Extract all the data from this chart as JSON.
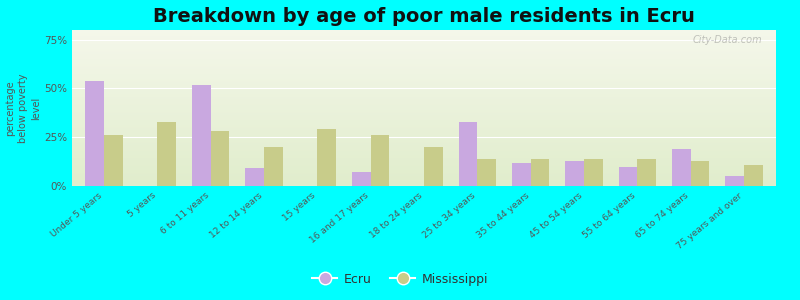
{
  "title": "Breakdown by age of poor male residents in Ecru",
  "ylabel": "percentage\nbelow poverty\nlevel",
  "categories": [
    "Under 5 years",
    "5 years",
    "6 to 11 years",
    "12 to 14 years",
    "15 years",
    "16 and 17 years",
    "18 to 24 years",
    "25 to 34 years",
    "35 to 44 years",
    "45 to 54 years",
    "55 to 64 years",
    "65 to 74 years",
    "75 years and over"
  ],
  "ecru_values": [
    54,
    0,
    52,
    9,
    0,
    7,
    0,
    33,
    12,
    13,
    10,
    19,
    5
  ],
  "mississippi_values": [
    26,
    33,
    28,
    20,
    29,
    26,
    20,
    14,
    14,
    14,
    14,
    13,
    11
  ],
  "ecru_color": "#c9a8e0",
  "mississippi_color": "#c8cc8a",
  "background_color": "#00ffff",
  "ylim": [
    0,
    80
  ],
  "yticks": [
    0,
    25,
    50,
    75
  ],
  "ytick_labels": [
    "0%",
    "25%",
    "50%",
    "75%"
  ],
  "bar_width": 0.35,
  "title_fontsize": 14,
  "legend_labels": [
    "Ecru",
    "Mississippi"
  ],
  "watermark": "City-Data.com"
}
